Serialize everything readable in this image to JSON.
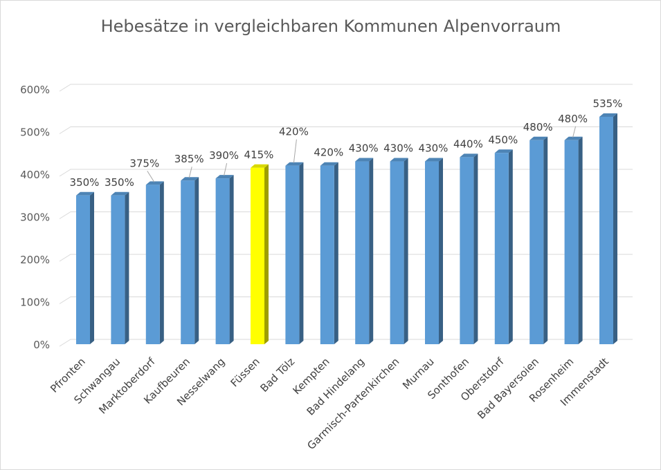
{
  "chart_data": {
    "type": "bar",
    "title": "Hebesätze in vergleichbaren Kommunen Alpenvorraum",
    "xlabel": "",
    "ylabel": "",
    "ylim": [
      0,
      600
    ],
    "yticks": [
      "0%",
      "100%",
      "200%",
      "300%",
      "400%",
      "500%",
      "600%"
    ],
    "grid": true,
    "legend": "none",
    "categories": [
      "Pfronten",
      "Schwangau",
      "Marktoberdorf",
      "Kaufbeuren",
      "Nesselwang",
      "Füssen",
      "Bad Tölz",
      "Kempten",
      "Bad Hindelang",
      "Garmisch-Partenkirchen",
      "Murnau",
      "Sonthofen",
      "Oberstdorf",
      "Bad Bayersoien",
      "Rosenheim",
      "Immenstadt"
    ],
    "values": [
      350,
      350,
      375,
      385,
      390,
      415,
      420,
      420,
      430,
      430,
      430,
      440,
      450,
      480,
      480,
      535
    ],
    "data_labels": [
      "350%",
      "350%",
      "375%",
      "385%",
      "390%",
      "415%",
      "420%",
      "420%",
      "430%",
      "430%",
      "430%",
      "440%",
      "450%",
      "480%",
      "480%",
      "535%"
    ],
    "colors": {
      "default": "#5b9bd5",
      "highlight": "#ffff00"
    },
    "highlight_category": "Füssen"
  }
}
